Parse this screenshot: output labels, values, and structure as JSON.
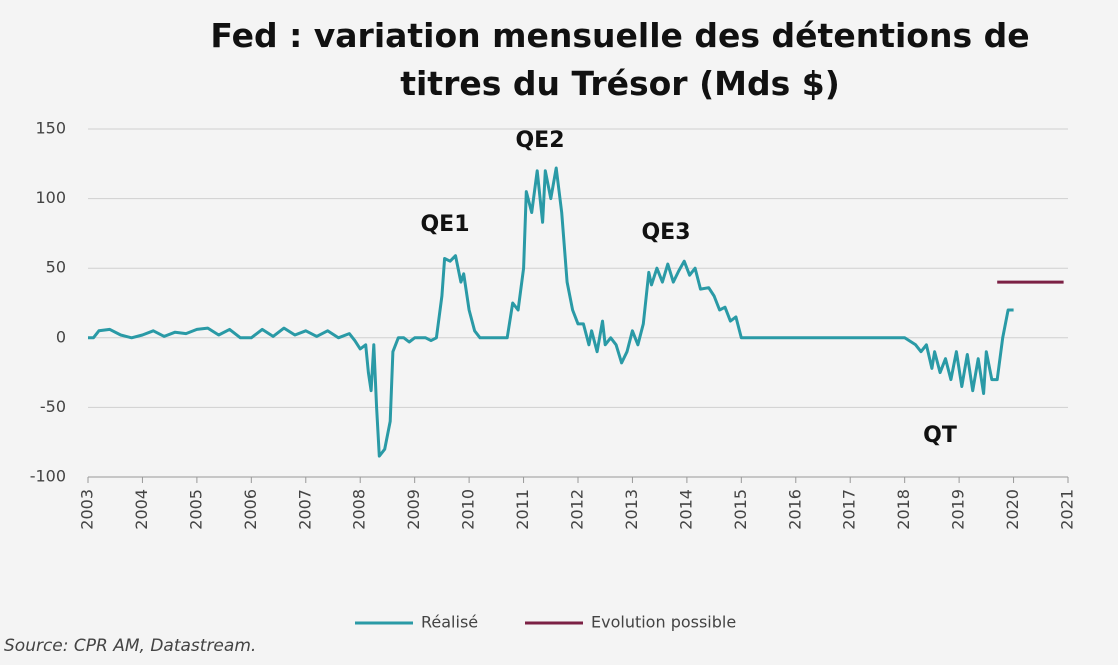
{
  "chart_data": {
    "type": "line",
    "title": "Fed : variation mensuelle des détentions de titres du Trésor (Mds $)",
    "source": "Source: CPR AM, Datastream.",
    "annotations": [
      "QE1",
      "QE2",
      "QE3",
      "QT"
    ],
    "xlim": [
      2003,
      2021
    ],
    "xticks": [
      2003,
      2004,
      2005,
      2006,
      2007,
      2008,
      2009,
      2010,
      2011,
      2012,
      2013,
      2014,
      2015,
      2016,
      2017,
      2018,
      2019,
      2020,
      2021
    ],
    "ylim": [
      -100,
      150
    ],
    "yticks": [
      -100,
      -50,
      0,
      50,
      100,
      150
    ],
    "grid": true,
    "legend": "bottom",
    "series": [
      {
        "name": "Réalisé",
        "color": "#2a9aa6",
        "x": [
          2003.0,
          2003.1,
          2003.2,
          2003.4,
          2003.6,
          2003.8,
          2004.0,
          2004.2,
          2004.4,
          2004.6,
          2004.8,
          2005.0,
          2005.2,
          2005.4,
          2005.6,
          2005.8,
          2006.0,
          2006.2,
          2006.4,
          2006.6,
          2006.8,
          2007.0,
          2007.2,
          2007.4,
          2007.6,
          2007.8,
          2007.9,
          2008.0,
          2008.1,
          2008.15,
          2008.2,
          2008.25,
          2008.3,
          2008.35,
          2008.45,
          2008.55,
          2008.6,
          2008.7,
          2008.8,
          2008.9,
          2009.0,
          2009.2,
          2009.3,
          2009.4,
          2009.5,
          2009.55,
          2009.65,
          2009.75,
          2009.85,
          2009.9,
          2010.0,
          2010.1,
          2010.2,
          2010.5,
          2010.7,
          2010.8,
          2010.9,
          2011.0,
          2011.05,
          2011.15,
          2011.25,
          2011.35,
          2011.4,
          2011.5,
          2011.6,
          2011.7,
          2011.8,
          2011.9,
          2012.0,
          2012.1,
          2012.2,
          2012.25,
          2012.35,
          2012.45,
          2012.5,
          2012.6,
          2012.7,
          2012.8,
          2012.9,
          2013.0,
          2013.1,
          2013.2,
          2013.3,
          2013.35,
          2013.45,
          2013.55,
          2013.65,
          2013.75,
          2013.85,
          2013.95,
          2014.05,
          2014.15,
          2014.25,
          2014.4,
          2014.5,
          2014.6,
          2014.7,
          2014.8,
          2014.9,
          2015.0,
          2016.0,
          2017.0,
          2018.0,
          2018.2,
          2018.3,
          2018.4,
          2018.5,
          2018.55,
          2018.65,
          2018.75,
          2018.85,
          2018.95,
          2019.05,
          2019.15,
          2019.25,
          2019.35,
          2019.45,
          2019.5,
          2019.6,
          2019.7,
          2019.8,
          2019.9,
          2020.0
        ],
        "values": [
          0,
          0,
          5,
          6,
          2,
          0,
          2,
          5,
          1,
          4,
          3,
          6,
          7,
          2,
          6,
          0,
          0,
          6,
          1,
          7,
          2,
          5,
          1,
          5,
          0,
          3,
          -2,
          -8,
          -5,
          -25,
          -38,
          -5,
          -50,
          -85,
          -80,
          -60,
          -10,
          0,
          0,
          -3,
          0,
          0,
          -2,
          0,
          30,
          57,
          55,
          59,
          40,
          46,
          20,
          5,
          0,
          0,
          0,
          25,
          20,
          50,
          105,
          90,
          120,
          83,
          120,
          100,
          122,
          90,
          40,
          20,
          10,
          10,
          -5,
          5,
          -10,
          12,
          -5,
          0,
          -5,
          -18,
          -10,
          5,
          -5,
          10,
          47,
          38,
          50,
          40,
          53,
          40,
          48,
          55,
          45,
          50,
          35,
          36,
          30,
          20,
          22,
          12,
          15,
          0,
          0,
          0,
          0,
          -5,
          -10,
          -5,
          -22,
          -10,
          -25,
          -15,
          -30,
          -10,
          -35,
          -12,
          -38,
          -15,
          -40,
          -10,
          -30,
          -30,
          0,
          20,
          20
        ]
      },
      {
        "name": "Evolution possible",
        "color": "#7b2044",
        "x": [
          2019.7,
          2020.92
        ],
        "values": [
          40,
          40
        ]
      }
    ]
  }
}
